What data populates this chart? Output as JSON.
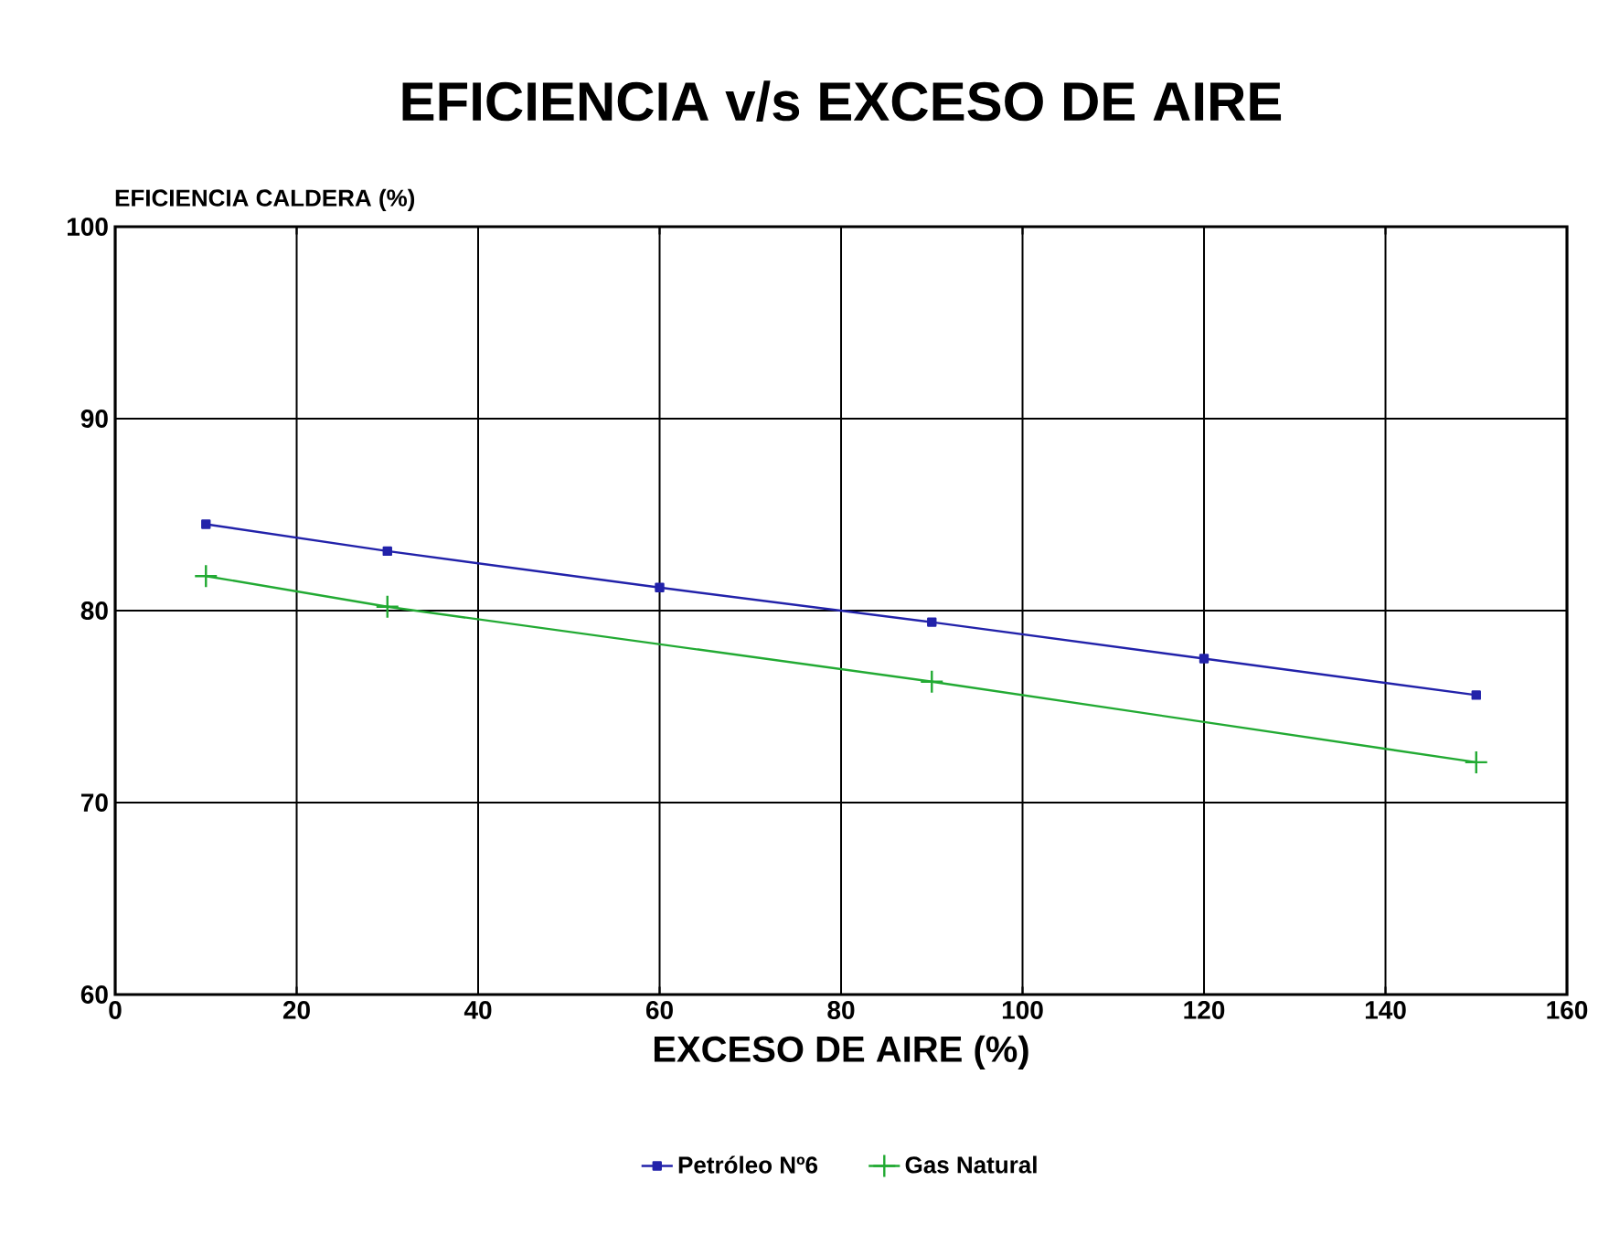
{
  "chart_data": {
    "type": "line",
    "title": "EFICIENCIA v/s EXCESO DE AIRE",
    "xlabel": "EXCESO DE AIRE (%)",
    "ylabel": "EFICIENCIA CALDERA (%)",
    "xlim": [
      0,
      160
    ],
    "xticks": [
      0,
      20,
      40,
      60,
      80,
      100,
      120,
      140,
      160
    ],
    "ylim": [
      60,
      100
    ],
    "yticks": [
      60,
      70,
      80,
      90,
      100
    ],
    "grid": true,
    "legend": "bottom",
    "series": [
      {
        "name": "Petróleo Nº6",
        "color": "#2222aa",
        "marker": "square",
        "x": [
          10,
          30,
          60,
          90,
          120,
          150
        ],
        "values": [
          84.5,
          83.1,
          81.2,
          79.4,
          77.5,
          75.6
        ]
      },
      {
        "name": "Gas Natural",
        "color": "#22aa33",
        "marker": "cross",
        "x": [
          10,
          30,
          90,
          150
        ],
        "values": [
          81.8,
          80.2,
          76.3,
          72.1
        ]
      }
    ]
  }
}
